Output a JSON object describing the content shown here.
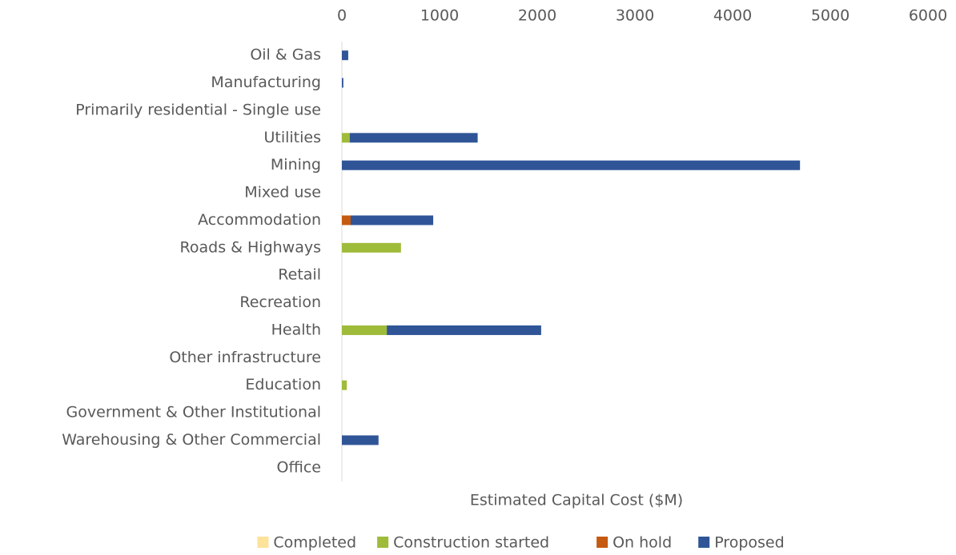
{
  "chart_data": {
    "type": "stacked-barh",
    "xlabel": "Estimated Capital Cost ($M)",
    "categories": [
      "Oil & Gas",
      "Manufacturing",
      "Primarily residential - Single use",
      "Utilities",
      "Mining",
      "Mixed use",
      "Accommodation",
      "Roads & Highways",
      "Retail",
      "Recreation",
      "Health",
      "Other infrastructure",
      "Education",
      "Government & Other Institutional",
      "Warehousing & Other Commercial",
      "Office"
    ],
    "series": [
      {
        "name": "Completed",
        "color": "#fde29a",
        "values": [
          0,
          0,
          0,
          0,
          0,
          0,
          0,
          0,
          0,
          0,
          0,
          0,
          0,
          0,
          0,
          0
        ]
      },
      {
        "name": "Construction started",
        "color": "#9fbb3a",
        "values": [
          0,
          0,
          0,
          80,
          0,
          0,
          0,
          605,
          0,
          0,
          460,
          0,
          50,
          0,
          0,
          0
        ]
      },
      {
        "name": "On hold",
        "color": "#c55a11",
        "values": [
          0,
          0,
          0,
          0,
          0,
          0,
          90,
          0,
          0,
          0,
          0,
          0,
          0,
          0,
          0,
          0
        ]
      },
      {
        "name": "Proposed",
        "color": "#2f5597",
        "values": [
          65,
          15,
          0,
          1310,
          4690,
          0,
          845,
          0,
          0,
          0,
          1580,
          0,
          0,
          0,
          375,
          0
        ]
      }
    ],
    "xlim": [
      0,
      6000
    ],
    "xticks": [
      0,
      1000,
      2000,
      3000,
      4000,
      5000,
      6000
    ],
    "grid": false,
    "legend": "bottom"
  }
}
